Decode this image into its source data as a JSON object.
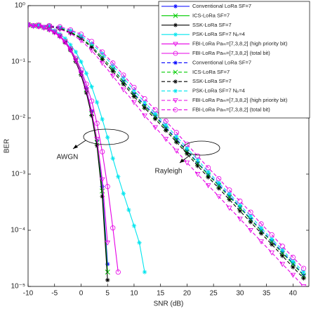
{
  "chart_data": {
    "type": "line",
    "x_label": "SNR (dB)",
    "y_label": "BER",
    "log_y": true,
    "xlim": [
      -10,
      43
    ],
    "ylim": [
      1e-05,
      1
    ],
    "xticks": [
      -10,
      -5,
      0,
      5,
      10,
      15,
      20,
      25,
      30,
      35,
      40
    ],
    "yticks": [
      {
        "value": 1,
        "label": "10⁰"
      },
      {
        "value": 0.1,
        "label": "10⁻¹"
      },
      {
        "value": 0.01,
        "label": "10⁻²"
      },
      {
        "value": 0.001,
        "label": "10⁻³"
      },
      {
        "value": 0.0001,
        "label": "10⁻⁴"
      },
      {
        "value": 1e-05,
        "label": "10⁻⁵"
      }
    ],
    "legend": "top-right",
    "annotations": [
      "AWGN",
      "Rayleigh"
    ],
    "series": [
      {
        "name": "Conventional LoRa SF=7",
        "color": "#0000ff",
        "marker": "asterisk",
        "dash": false,
        "x": [
          -10,
          -9,
          -8,
          -7,
          -6,
          -5,
          -4,
          -3,
          -2,
          -1,
          0,
          1,
          2,
          3,
          4,
          5
        ],
        "values": [
          0.45,
          0.44,
          0.43,
          0.41,
          0.38,
          0.34,
          0.29,
          0.23,
          0.17,
          0.11,
          0.065,
          0.033,
          0.013,
          0.004,
          0.0006,
          2.5e-05
        ]
      },
      {
        "name": "ICS-LoRa SF=7",
        "color": "#00cc00",
        "marker": "x",
        "dash": false,
        "x": [
          -10,
          -9,
          -8,
          -7,
          -6,
          -5,
          -4,
          -3,
          -2,
          -1,
          0,
          1,
          2,
          3,
          4,
          5
        ],
        "values": [
          0.45,
          0.44,
          0.43,
          0.41,
          0.38,
          0.34,
          0.29,
          0.23,
          0.17,
          0.11,
          0.064,
          0.032,
          0.012,
          0.0037,
          0.0005,
          1.8e-05
        ]
      },
      {
        "name": "SSK-LoRa SF=7",
        "color": "#000000",
        "marker": "asterisk",
        "dash": false,
        "x": [
          -10,
          -9,
          -8,
          -7,
          -6,
          -5,
          -4,
          -3,
          -2,
          -1,
          0,
          1,
          2,
          3,
          4,
          5
        ],
        "values": [
          0.45,
          0.44,
          0.43,
          0.41,
          0.38,
          0.34,
          0.29,
          0.22,
          0.16,
          0.1,
          0.058,
          0.028,
          0.011,
          0.0032,
          0.0004,
          1.3e-05
        ]
      },
      {
        "name": "PSK-LoRa SF=7 Nₚ=4",
        "color": "#00e5ee",
        "marker": "asterisk",
        "dash": false,
        "x": [
          -10,
          -9,
          -8,
          -7,
          -6,
          -5,
          -4,
          -3,
          -2,
          -1,
          0,
          1,
          2,
          3,
          4,
          5,
          6,
          7,
          8,
          9,
          10,
          11,
          12
        ],
        "values": [
          0.45,
          0.44,
          0.43,
          0.41,
          0.39,
          0.36,
          0.31,
          0.26,
          0.2,
          0.15,
          0.1,
          0.062,
          0.036,
          0.019,
          0.0095,
          0.0045,
          0.0019,
          0.0009,
          0.00045,
          0.00023,
          0.00012,
          6e-05,
          1.8e-05
        ]
      },
      {
        "name": "FBI-LoRa Paₘ=[7,3,8,2] (high priority bit)",
        "color": "#e600e6",
        "marker": "triangle-down",
        "dash": false,
        "x": [
          -10,
          -9,
          -8,
          -7,
          -6,
          -5,
          -4,
          -3,
          -2,
          -1,
          0,
          1,
          2,
          3,
          4,
          5
        ],
        "values": [
          0.44,
          0.43,
          0.42,
          0.4,
          0.37,
          0.33,
          0.28,
          0.22,
          0.16,
          0.105,
          0.062,
          0.032,
          0.013,
          0.0042,
          0.0008,
          6e-05
        ]
      },
      {
        "name": "FBI-LoRa Paₘ=[7,3,8,2] (total bit)",
        "color": "#e600e6",
        "marker": "circle",
        "dash": false,
        "x": [
          -10,
          -9,
          -8,
          -7,
          -6,
          -5,
          -4,
          -3,
          -2,
          -1,
          0,
          1,
          2,
          3,
          4,
          5,
          6,
          7
        ],
        "values": [
          0.45,
          0.44,
          0.43,
          0.41,
          0.38,
          0.34,
          0.29,
          0.23,
          0.17,
          0.115,
          0.072,
          0.04,
          0.02,
          0.008,
          0.0025,
          0.0006,
          0.00011,
          1.8e-05
        ]
      },
      {
        "name": "Conventional LoRa SF=7",
        "color": "#0000ff",
        "marker": "asterisk",
        "dash": true,
        "x": [
          -10,
          -8,
          -6,
          -4,
          -2,
          0,
          2,
          4,
          6,
          8,
          10,
          12,
          14,
          16,
          18,
          20,
          22,
          24,
          26,
          28,
          30,
          32,
          34,
          36,
          38,
          40,
          42
        ],
        "values": [
          0.46,
          0.45,
          0.43,
          0.4,
          0.34,
          0.27,
          0.19,
          0.12,
          0.075,
          0.045,
          0.027,
          0.017,
          0.011,
          0.0068,
          0.0042,
          0.0026,
          0.0016,
          0.001,
          0.00065,
          0.00041,
          0.00026,
          0.00016,
          0.0001,
          6.5e-05,
          4.1e-05,
          2.6e-05,
          1.6e-05
        ]
      },
      {
        "name": "ICS-LoRa SF=7",
        "color": "#00cc00",
        "marker": "x",
        "dash": true,
        "x": [
          -10,
          -8,
          -6,
          -4,
          -2,
          0,
          2,
          4,
          6,
          8,
          10,
          12,
          14,
          16,
          18,
          20,
          22,
          24,
          26,
          28,
          30,
          32,
          34,
          36,
          38,
          40,
          42
        ],
        "values": [
          0.46,
          0.45,
          0.43,
          0.4,
          0.34,
          0.27,
          0.19,
          0.12,
          0.074,
          0.044,
          0.026,
          0.016,
          0.0105,
          0.0065,
          0.004,
          0.0025,
          0.00155,
          0.00097,
          0.00062,
          0.00039,
          0.00025,
          0.000155,
          9.7e-05,
          6.2e-05,
          3.9e-05,
          2.5e-05,
          1.55e-05
        ]
      },
      {
        "name": "SSK-LoRa SF=7",
        "color": "#000000",
        "marker": "asterisk",
        "dash": true,
        "x": [
          -10,
          -8,
          -6,
          -4,
          -2,
          0,
          2,
          4,
          6,
          8,
          10,
          12,
          14,
          16,
          18,
          20,
          22,
          24,
          26,
          28,
          30,
          32,
          34,
          36,
          38,
          40,
          42
        ],
        "values": [
          0.46,
          0.45,
          0.43,
          0.39,
          0.33,
          0.26,
          0.18,
          0.11,
          0.068,
          0.04,
          0.024,
          0.015,
          0.0096,
          0.006,
          0.0037,
          0.0023,
          0.0014,
          0.00088,
          0.00056,
          0.00035,
          0.00022,
          0.00014,
          8.8e-05,
          5.6e-05,
          3.5e-05,
          2.2e-05,
          1.4e-05
        ]
      },
      {
        "name": "PSK-LoRa SF=7 Nₚ=4",
        "color": "#00e5ee",
        "marker": "asterisk",
        "dash": true,
        "x": [
          -10,
          -8,
          -6,
          -4,
          -2,
          0,
          2,
          4,
          6,
          8,
          10,
          12,
          14,
          16,
          18,
          20,
          22,
          24,
          26,
          28,
          30,
          32,
          34,
          36,
          38,
          40,
          42
        ],
        "values": [
          0.46,
          0.45,
          0.44,
          0.41,
          0.36,
          0.29,
          0.21,
          0.14,
          0.085,
          0.052,
          0.031,
          0.019,
          0.012,
          0.0075,
          0.0047,
          0.0029,
          0.0018,
          0.0011,
          0.0007,
          0.00045,
          0.00028,
          0.00018,
          0.00011,
          7e-05,
          4.5e-05,
          2.8e-05,
          1.8e-05
        ]
      },
      {
        "name": "FBI-LoRa Paₘ=[7,3,8,2] (high priority bit)",
        "color": "#e600e6",
        "marker": "triangle-down",
        "dash": true,
        "x": [
          -10,
          -8,
          -6,
          -4,
          -2,
          0,
          2,
          4,
          6,
          8,
          10,
          12,
          14,
          16,
          18,
          20,
          22,
          24,
          26,
          28,
          30,
          32,
          34,
          36,
          38,
          40,
          42
        ],
        "values": [
          0.45,
          0.44,
          0.42,
          0.38,
          0.32,
          0.24,
          0.16,
          0.095,
          0.056,
          0.032,
          0.019,
          0.011,
          0.0068,
          0.0042,
          0.0026,
          0.0016,
          0.001,
          0.00063,
          0.0004,
          0.00025,
          0.00016,
          0.0001,
          6.3e-05,
          4e-05,
          2.5e-05,
          1.6e-05,
          1e-05
        ]
      },
      {
        "name": "FBI-LoRa Paₘ=[7,3,8,2] (total bit)",
        "color": "#e600e6",
        "marker": "circle",
        "dash": true,
        "x": [
          -10,
          -8,
          -6,
          -4,
          -2,
          0,
          2,
          4,
          6,
          8,
          10,
          12,
          14,
          16,
          18,
          20,
          22,
          24,
          26,
          28,
          30,
          32,
          34,
          36,
          38,
          40,
          42
        ],
        "values": [
          0.46,
          0.45,
          0.44,
          0.42,
          0.37,
          0.31,
          0.23,
          0.15,
          0.095,
          0.058,
          0.035,
          0.022,
          0.014,
          0.0088,
          0.0055,
          0.0034,
          0.0021,
          0.0013,
          0.00083,
          0.00052,
          0.00033,
          0.00021,
          0.00013,
          8.3e-05,
          5.2e-05,
          3.3e-05,
          2.1e-05
        ]
      }
    ]
  }
}
